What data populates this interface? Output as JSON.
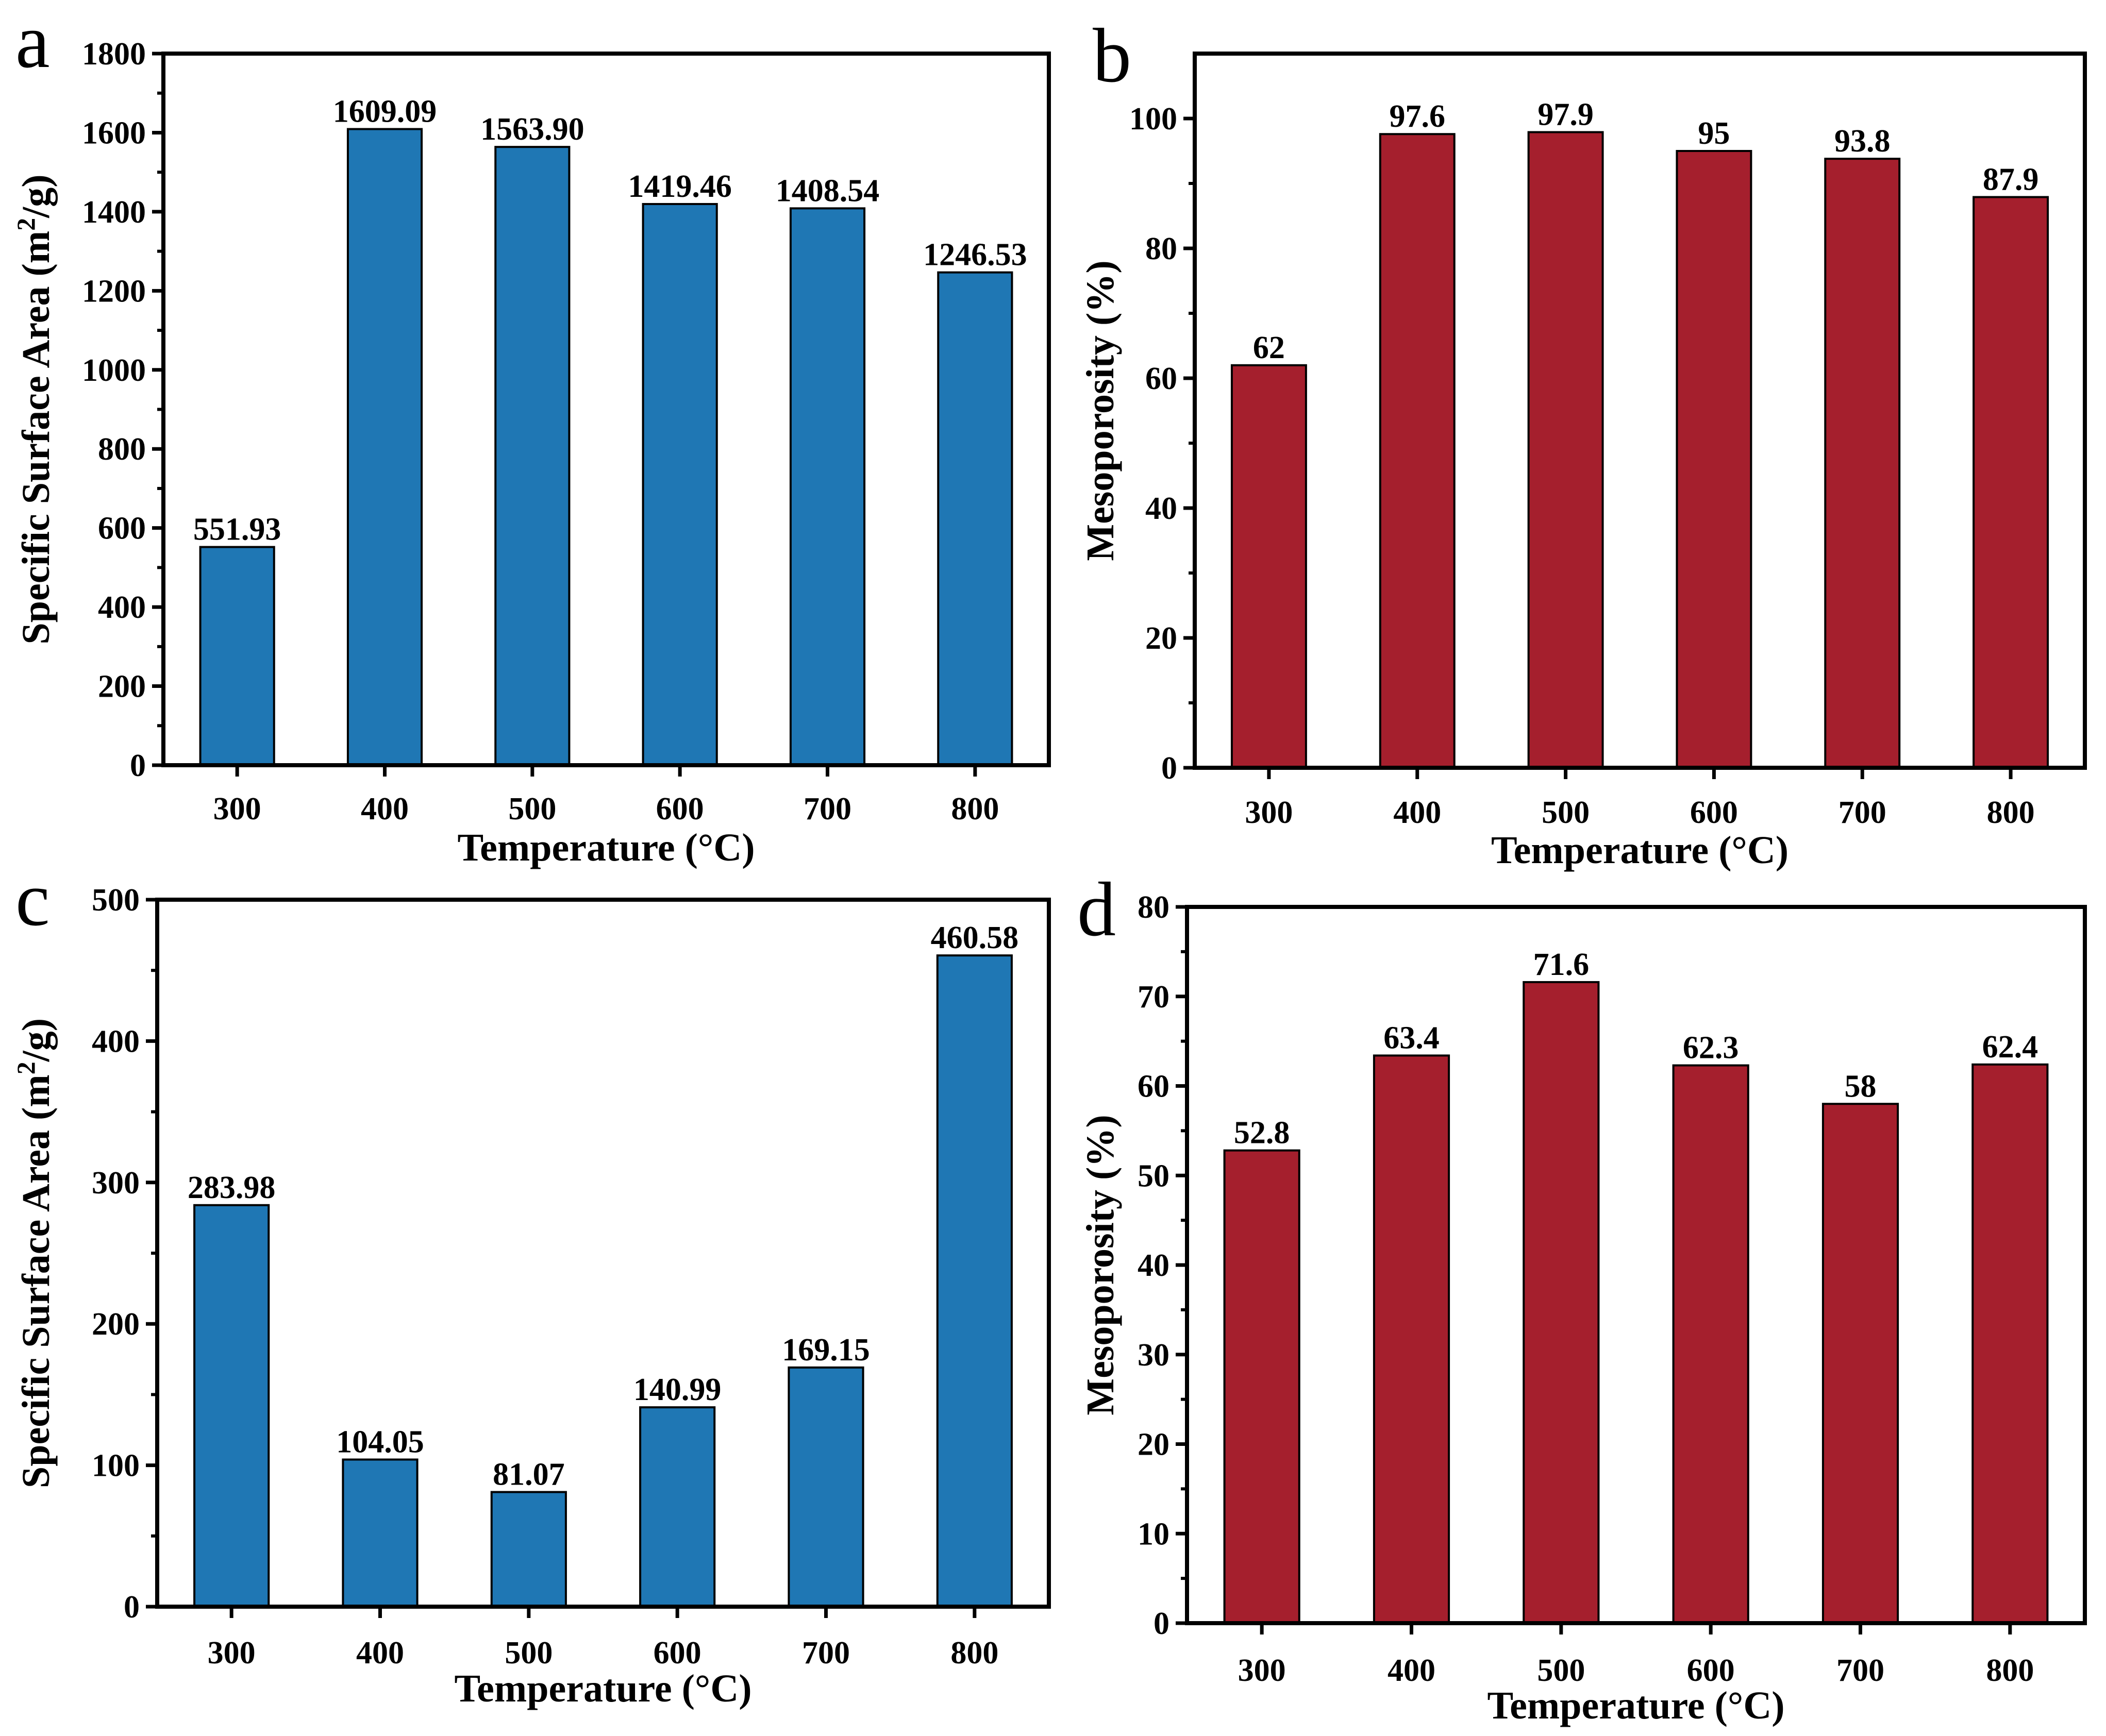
{
  "figure": {
    "panels": [
      {
        "letter": "a"
      },
      {
        "letter": "b"
      },
      {
        "letter": "c"
      },
      {
        "letter": "d"
      }
    ]
  },
  "chart_data": [
    {
      "panel": "a",
      "type": "bar",
      "categories": [
        "300",
        "400",
        "500",
        "600",
        "700",
        "800"
      ],
      "values": [
        551.93,
        1609.09,
        1563.9,
        1419.46,
        1408.54,
        1246.53
      ],
      "value_labels": [
        "551.93",
        "1609.09",
        "1563.90",
        "1419.46",
        "1408.54",
        "1246.53"
      ],
      "xlabel": "Temperature (°C)",
      "ylabel_pre": "Specific Surface Area (m",
      "ylabel_sup": "2",
      "ylabel_post": "/g)",
      "ylim": [
        0,
        1800
      ],
      "yticks": [
        0,
        200,
        400,
        600,
        800,
        1000,
        1200,
        1400,
        1600,
        1800
      ],
      "color": "#1f77b4",
      "grid": false,
      "legend": "none"
    },
    {
      "panel": "b",
      "type": "bar",
      "categories": [
        "300",
        "400",
        "500",
        "600",
        "700",
        "800"
      ],
      "values": [
        62,
        97.6,
        97.9,
        95,
        93.8,
        87.9
      ],
      "value_labels": [
        "62",
        "97.6",
        "97.9",
        "95",
        "93.8",
        "87.9"
      ],
      "xlabel": "Temperature (°C)",
      "ylabel": "Mesoporosity (%)",
      "ylim": [
        0,
        110
      ],
      "yticks": [
        0,
        20,
        40,
        60,
        80,
        100
      ],
      "color": "#a51f2d",
      "grid": false,
      "legend": "none"
    },
    {
      "panel": "c",
      "type": "bar",
      "categories": [
        "300",
        "400",
        "500",
        "600",
        "700",
        "800"
      ],
      "values": [
        283.98,
        104.05,
        81.07,
        140.99,
        169.15,
        460.58
      ],
      "value_labels": [
        "283.98",
        "104.05",
        "81.07",
        "140.99",
        "169.15",
        "460.58"
      ],
      "xlabel": "Temperature (°C)",
      "ylabel_pre": "Specific Surface Area (m",
      "ylabel_sup": "2",
      "ylabel_post": "/g)",
      "ylim": [
        0,
        500
      ],
      "yticks": [
        0,
        100,
        200,
        300,
        400,
        500
      ],
      "color": "#1f77b4",
      "grid": false,
      "legend": "none"
    },
    {
      "panel": "d",
      "type": "bar",
      "categories": [
        "300",
        "400",
        "500",
        "600",
        "700",
        "800"
      ],
      "values": [
        52.8,
        63.4,
        71.6,
        62.3,
        58,
        62.4
      ],
      "value_labels": [
        "52.8",
        "63.4",
        "71.6",
        "62.3",
        "58",
        "62.4"
      ],
      "xlabel": "Temperature (°C)",
      "ylabel": "Mesoporosity (%)",
      "ylim": [
        0,
        80
      ],
      "yticks": [
        0,
        10,
        20,
        30,
        40,
        50,
        60,
        70,
        80
      ],
      "color": "#a51f2d",
      "grid": false,
      "legend": "none"
    }
  ]
}
